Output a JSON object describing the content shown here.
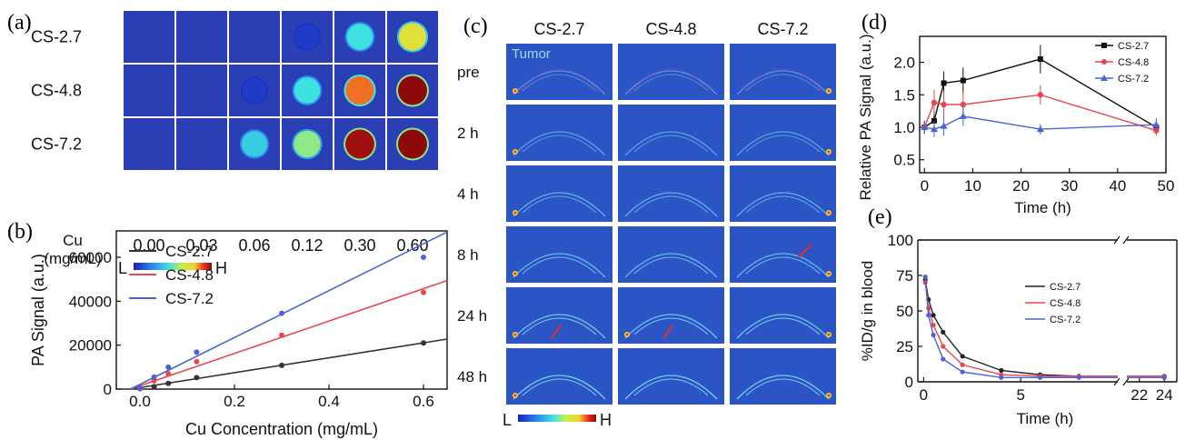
{
  "panel_a": {
    "label": "(a)",
    "rows": [
      "CS-2.7",
      "CS-4.8",
      "CS-7.2"
    ],
    "concentrations": [
      "0.00",
      "0.03",
      "0.06",
      "0.12",
      "0.30",
      "0.60"
    ],
    "cu_label_line1": "Cu",
    "cu_label_line2": "(mg/mL)",
    "scale_low": "L",
    "scale_high": "H",
    "intensity": [
      [
        0.0,
        0.0,
        0.01,
        0.05,
        0.45,
        0.7
      ],
      [
        0.0,
        0.01,
        0.05,
        0.45,
        0.85,
        1.0
      ],
      [
        0.0,
        0.02,
        0.4,
        0.55,
        0.98,
        1.0
      ]
    ]
  },
  "panel_b": {
    "label": "(b)",
    "chart_data": {
      "type": "scatter",
      "xlabel": "Cu Concentration (mg/mL)",
      "ylabel": "PA Signal (a.u.)",
      "xlim": [
        -0.05,
        0.65
      ],
      "ylim": [
        0,
        72000
      ],
      "xticks": [
        "0.0",
        "0.2",
        "0.4",
        "0.6"
      ],
      "xtick_values": [
        0,
        0.2,
        0.4,
        0.6
      ],
      "yticks": [
        "0",
        "20000",
        "40000",
        "60000"
      ],
      "ytick_values": [
        0,
        20000,
        40000,
        60000
      ],
      "legend_position": "top-left",
      "series": [
        {
          "name": "CS-2.7",
          "color": "#333333",
          "x": [
            0,
            0.03,
            0.06,
            0.12,
            0.3,
            0.6
          ],
          "y": [
            200,
            1100,
            2600,
            5200,
            10800,
            21000
          ],
          "slope": 35000
        },
        {
          "name": "CS-4.8",
          "color": "#e8474c",
          "x": [
            0,
            0.03,
            0.06,
            0.12,
            0.3,
            0.6
          ],
          "y": [
            300,
            3800,
            7000,
            12500,
            24500,
            44000
          ],
          "slope": 76000
        },
        {
          "name": "CS-7.2",
          "color": "#4a63d8",
          "x": [
            0,
            0.03,
            0.06,
            0.12,
            0.3,
            0.6
          ],
          "y": [
            400,
            5500,
            10000,
            16800,
            34500,
            60000
          ],
          "slope": 110000
        }
      ]
    }
  },
  "panel_c": {
    "label": "(c)",
    "columns": [
      "CS-2.7",
      "CS-4.8",
      "CS-7.2"
    ],
    "rows": [
      "pre",
      "2 h",
      "4 h",
      "8 h",
      "24 h",
      "48 h"
    ],
    "tumor_label": "Tumor",
    "scale_low": "L",
    "scale_high": "H"
  },
  "panel_d": {
    "label": "(d)",
    "chart_data": {
      "type": "line",
      "xlabel": "Time (h)",
      "ylabel": "Relative PA Signal (a.u.)",
      "xlim": [
        -1,
        50
      ],
      "ylim": [
        0.3,
        2.4
      ],
      "xticks": [
        "0",
        "10",
        "20",
        "30",
        "40",
        "50"
      ],
      "xtick_values": [
        0,
        10,
        20,
        30,
        40,
        50
      ],
      "yticks": [
        "0.5",
        "1.0",
        "1.5",
        "2.0"
      ],
      "ytick_values": [
        0.5,
        1.0,
        1.5,
        2.0
      ],
      "legend_position": "top-right",
      "series": [
        {
          "name": "CS-2.7",
          "color": "#111111",
          "marker": "square",
          "x": [
            0,
            2,
            4,
            8,
            24,
            48
          ],
          "y": [
            1.0,
            1.1,
            1.68,
            1.72,
            2.05,
            1.0
          ],
          "err": [
            0.1,
            0.15,
            0.18,
            0.2,
            0.22,
            0.08
          ]
        },
        {
          "name": "CS-4.8",
          "color": "#e8474c",
          "marker": "circle",
          "x": [
            0,
            2,
            4,
            8,
            24,
            48
          ],
          "y": [
            1.0,
            1.38,
            1.35,
            1.35,
            1.5,
            0.95
          ],
          "err": [
            0.1,
            0.2,
            0.2,
            0.2,
            0.15,
            0.08
          ]
        },
        {
          "name": "CS-7.2",
          "color": "#4a63d8",
          "marker": "triangle",
          "x": [
            0,
            2,
            4,
            8,
            24,
            48
          ],
          "y": [
            1.0,
            0.97,
            1.02,
            1.17,
            0.97,
            1.04
          ],
          "err": [
            0.1,
            0.12,
            0.15,
            0.15,
            0.08,
            0.1
          ]
        }
      ]
    }
  },
  "panel_e": {
    "label": "(e)",
    "chart_data": {
      "type": "line",
      "xlabel": "Time (h)",
      "ylabel": "%ID/g in blood",
      "ylim": [
        0,
        100
      ],
      "xticks": [
        "0",
        "5",
        "22",
        "24"
      ],
      "yticks": [
        "0",
        "25",
        "50",
        "75",
        "100"
      ],
      "ytick_values": [
        0,
        25,
        50,
        75,
        100
      ],
      "axis_break": "between 10 h and 21 h",
      "legend_position": "center-right",
      "series": [
        {
          "name": "CS-2.7",
          "color": "#222222",
          "x": [
            0.083,
            0.25,
            0.5,
            1,
            2,
            4,
            6,
            8,
            24
          ],
          "y": [
            72,
            58,
            47,
            35,
            18,
            8,
            5,
            4,
            4
          ]
        },
        {
          "name": "CS-4.8",
          "color": "#e8474c",
          "x": [
            0.083,
            0.25,
            0.5,
            1,
            2,
            4,
            6,
            8,
            24
          ],
          "y": [
            70,
            52,
            40,
            25,
            12,
            5,
            4,
            4,
            4
          ]
        },
        {
          "name": "CS-7.2",
          "color": "#4a63d8",
          "x": [
            0.083,
            0.25,
            0.5,
            1,
            2,
            4,
            6,
            8,
            24
          ],
          "y": [
            74,
            47,
            33,
            16,
            7,
            3,
            3,
            3,
            3
          ]
        }
      ]
    }
  }
}
